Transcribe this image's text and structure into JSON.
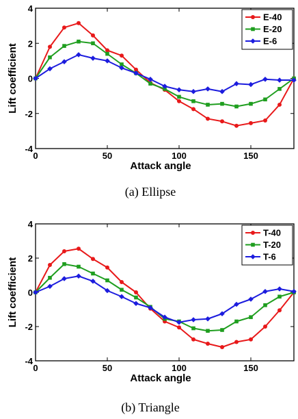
{
  "chart_data": [
    {
      "type": "line",
      "caption": "(a)  Ellipse",
      "xlabel": "Attack angle",
      "ylabel": "Lift coefficient",
      "xlim": [
        0,
        180
      ],
      "ylim": [
        -4,
        4
      ],
      "xticks": [
        "0",
        "50",
        "100",
        "150"
      ],
      "yticks": [
        "4",
        "2",
        "0",
        "-2",
        "-4"
      ],
      "grid": false,
      "legend_position": "top-right",
      "x": [
        0,
        10,
        20,
        30,
        40,
        50,
        60,
        70,
        80,
        90,
        100,
        110,
        120,
        130,
        140,
        150,
        160,
        170,
        180
      ],
      "series": [
        {
          "name": "E-40",
          "color": "#e8191a",
          "values": [
            0,
            1.8,
            2.9,
            3.15,
            2.45,
            1.6,
            1.3,
            0.5,
            -0.25,
            -0.65,
            -1.3,
            -1.75,
            -2.3,
            -2.45,
            -2.7,
            -2.55,
            -2.4,
            -1.5,
            0
          ]
        },
        {
          "name": "E-20",
          "color": "#1f9e1f",
          "values": [
            0,
            1.2,
            1.85,
            2.1,
            2.0,
            1.4,
            0.8,
            0.3,
            -0.3,
            -0.6,
            -1.05,
            -1.3,
            -1.5,
            -1.45,
            -1.6,
            -1.45,
            -1.2,
            -0.6,
            0
          ]
        },
        {
          "name": "E-6",
          "color": "#1c1cde",
          "values": [
            0,
            0.55,
            0.95,
            1.35,
            1.15,
            1.0,
            0.6,
            0.3,
            -0.05,
            -0.45,
            -0.65,
            -0.75,
            -0.6,
            -0.75,
            -0.3,
            -0.35,
            -0.05,
            -0.1,
            -0.1
          ]
        }
      ]
    },
    {
      "type": "line",
      "caption": "(b)  Triangle",
      "xlabel": "Attack angle",
      "ylabel": "Lift coefficient",
      "xlim": [
        0,
        180
      ],
      "ylim": [
        -4,
        4
      ],
      "xticks": [
        "0",
        "50",
        "100",
        "150"
      ],
      "yticks": [
        "4",
        "2",
        "0",
        "-2",
        "-4"
      ],
      "grid": false,
      "legend_position": "top-right",
      "x": [
        0,
        10,
        20,
        30,
        40,
        50,
        60,
        70,
        80,
        90,
        100,
        110,
        120,
        130,
        140,
        150,
        160,
        170,
        180
      ],
      "series": [
        {
          "name": "T-40",
          "color": "#e8191a",
          "values": [
            0,
            1.6,
            2.4,
            2.55,
            1.95,
            1.45,
            0.6,
            0,
            -0.95,
            -1.7,
            -2.05,
            -2.75,
            -3.0,
            -3.2,
            -2.9,
            -2.75,
            -2.0,
            -1.05,
            0
          ]
        },
        {
          "name": "T-20",
          "color": "#1f9e1f",
          "values": [
            0,
            0.85,
            1.65,
            1.5,
            1.1,
            0.7,
            0.15,
            -0.3,
            -0.85,
            -1.55,
            -1.7,
            -2.1,
            -2.25,
            -2.2,
            -1.7,
            -1.45,
            -0.75,
            -0.25,
            0
          ]
        },
        {
          "name": "T-6",
          "color": "#1c1cde",
          "values": [
            0,
            0.35,
            0.8,
            0.95,
            0.65,
            0.1,
            -0.25,
            -0.65,
            -0.9,
            -1.45,
            -1.75,
            -1.6,
            -1.55,
            -1.25,
            -0.7,
            -0.4,
            0.05,
            0.2,
            0.05
          ]
        }
      ]
    }
  ]
}
